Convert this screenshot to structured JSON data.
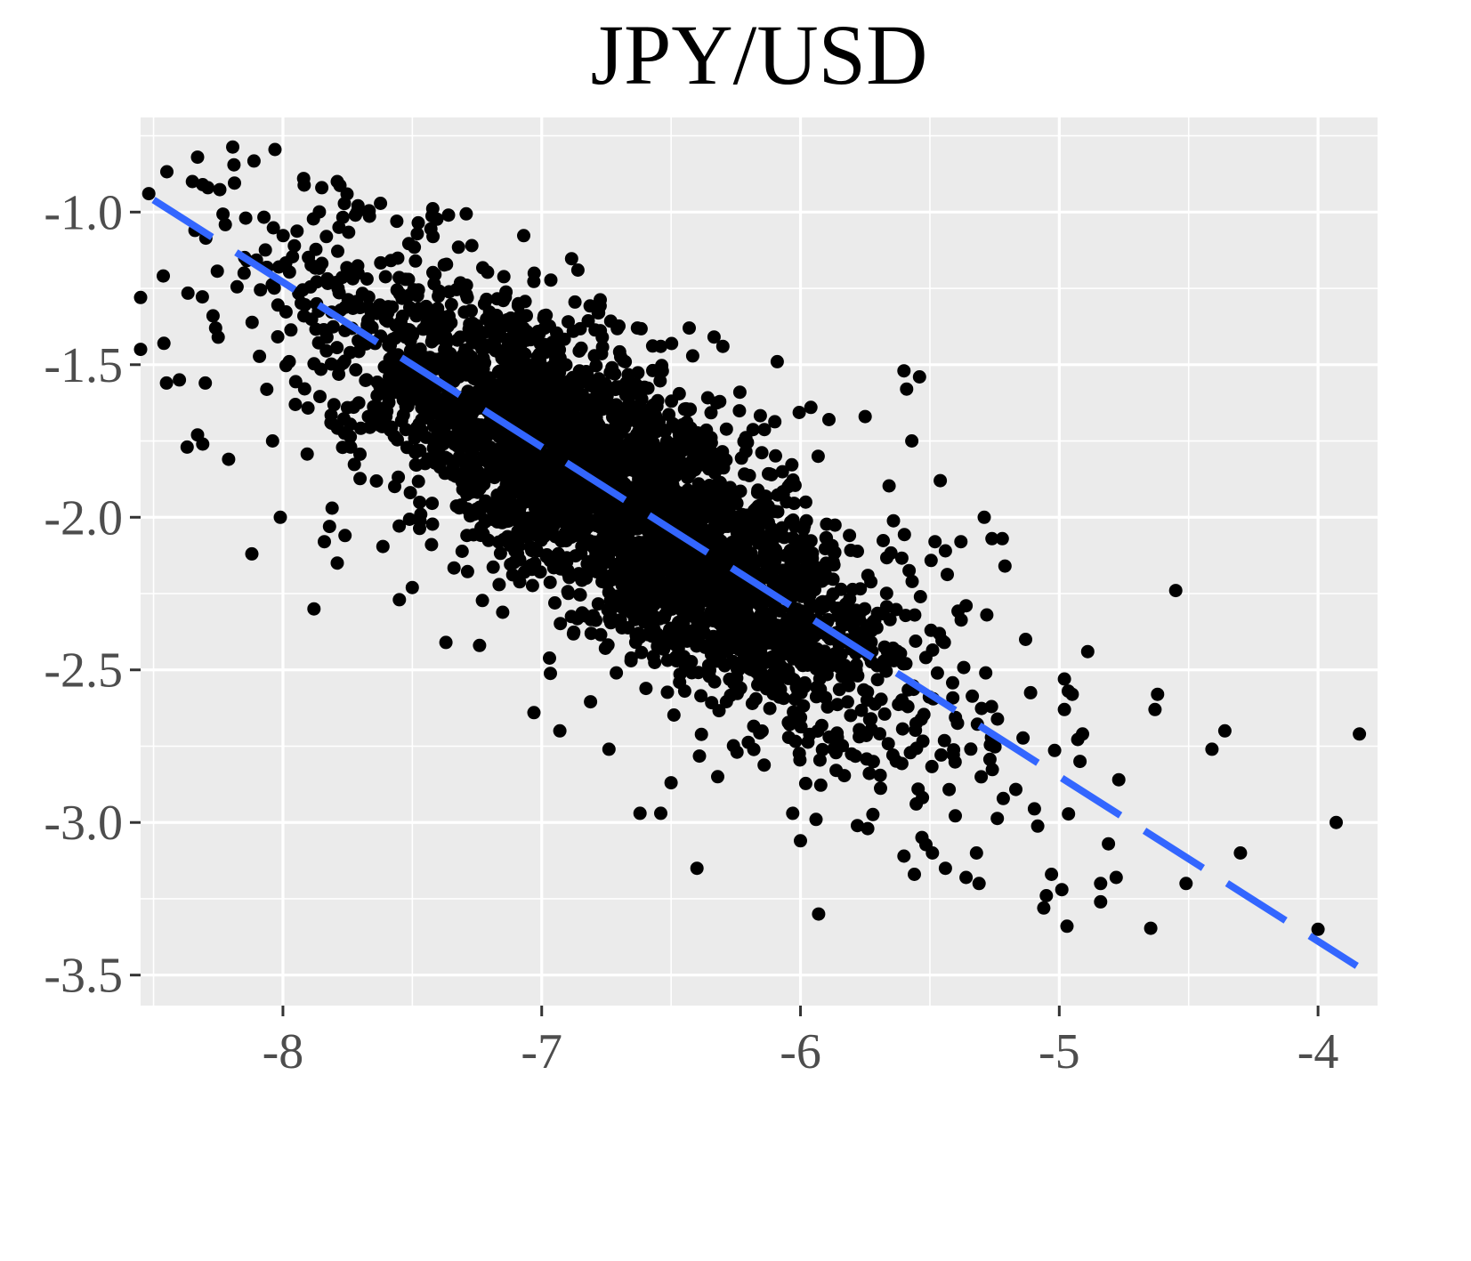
{
  "chart_data": {
    "type": "scatter",
    "title": "JPY/USD",
    "xlabel": "",
    "ylabel": "",
    "xlim": [
      -8.55,
      -3.77
    ],
    "ylim": [
      -3.6,
      -0.69
    ],
    "x_ticks": [
      "-8",
      "-7",
      "-6",
      "-5",
      "-4"
    ],
    "y_ticks": [
      "-1.0",
      "-1.5",
      "-2.0",
      "-2.5",
      "-3.0",
      "-3.5"
    ],
    "grid": true,
    "legend": "none",
    "colors": {
      "panel": "#ebebeb",
      "grid": "#ffffff",
      "points": "#000000",
      "fit_line": "#3366ff",
      "tick_text": "#4d4d4d"
    },
    "fit_line": {
      "style": "dashed",
      "x": [
        -8.5,
        -3.85
      ],
      "y": [
        -0.96,
        -3.47
      ]
    },
    "point_cloud": {
      "n": 3500,
      "x_center": -6.7,
      "x_sd": 0.55,
      "slope": -0.54,
      "intercept": -5.56,
      "resid_sd": 0.22
    },
    "points": [
      [
        -8.33,
        -0.82
      ],
      [
        -8.35,
        -0.9
      ],
      [
        -8.31,
        -0.91
      ],
      [
        -8.29,
        -0.92
      ],
      [
        -8.34,
        -1.06
      ],
      [
        -8.55,
        -1.28
      ],
      [
        -8.55,
        -1.45
      ],
      [
        -8.46,
        -1.43
      ],
      [
        -8.45,
        -1.56
      ],
      [
        -8.4,
        -1.55
      ],
      [
        -8.37,
        -1.77
      ],
      [
        -8.33,
        -1.73
      ],
      [
        -8.31,
        -1.76
      ],
      [
        -8.3,
        -1.56
      ],
      [
        -8.27,
        -1.34
      ],
      [
        -8.26,
        -1.38
      ],
      [
        -8.25,
        -1.41
      ],
      [
        -8.21,
        -1.81
      ],
      [
        -8.15,
        -1.2
      ],
      [
        -8.12,
        -2.12
      ],
      [
        -8.04,
        -1.75
      ],
      [
        -8.01,
        -2.0
      ],
      [
        -7.88,
        -2.3
      ],
      [
        -7.79,
        -2.15
      ],
      [
        -7.72,
        -1.01
      ],
      [
        -7.71,
        -1.2
      ],
      [
        -7.79,
        -0.9
      ],
      [
        -7.92,
        -0.89
      ],
      [
        -7.85,
        -0.92
      ],
      [
        -7.56,
        -1.03
      ],
      [
        -7.42,
        -1.08
      ],
      [
        -7.36,
        -1.01
      ],
      [
        -7.27,
        -1.11
      ],
      [
        -7.09,
        -1.3
      ],
      [
        -6.99,
        -1.34
      ],
      [
        -6.86,
        -1.19
      ],
      [
        -6.78,
        -1.33
      ],
      [
        -6.63,
        -1.38
      ],
      [
        -6.54,
        -1.44
      ],
      [
        -6.43,
        -1.38
      ],
      [
        -6.3,
        -1.44
      ],
      [
        -6.09,
        -1.49
      ],
      [
        -5.96,
        -1.64
      ],
      [
        -5.89,
        -1.68
      ],
      [
        -5.75,
        -1.67
      ],
      [
        -5.6,
        -1.52
      ],
      [
        -5.59,
        -1.58
      ],
      [
        -5.54,
        -1.54
      ],
      [
        -5.57,
        -1.75
      ],
      [
        -5.46,
        -1.88
      ],
      [
        -5.29,
        -2.0
      ],
      [
        -5.26,
        -2.07
      ],
      [
        -5.22,
        -2.07
      ],
      [
        -5.21,
        -2.16
      ],
      [
        -5.38,
        -2.08
      ],
      [
        -5.44,
        -2.11
      ],
      [
        -5.48,
        -2.08
      ],
      [
        -5.28,
        -2.32
      ],
      [
        -5.36,
        -2.29
      ],
      [
        -5.13,
        -2.4
      ],
      [
        -4.98,
        -2.53
      ],
      [
        -4.95,
        -2.58
      ],
      [
        -4.89,
        -2.44
      ],
      [
        -4.98,
        -2.63
      ],
      [
        -4.91,
        -2.71
      ],
      [
        -4.92,
        -2.8
      ],
      [
        -4.77,
        -2.86
      ],
      [
        -4.81,
        -3.07
      ],
      [
        -4.84,
        -3.2
      ],
      [
        -4.84,
        -3.26
      ],
      [
        -4.78,
        -3.18
      ],
      [
        -4.97,
        -3.34
      ],
      [
        -5.06,
        -3.28
      ],
      [
        -5.05,
        -3.24
      ],
      [
        -5.03,
        -3.17
      ],
      [
        -4.99,
        -3.22
      ],
      [
        -4.62,
        -2.58
      ],
      [
        -4.63,
        -2.63
      ],
      [
        -4.55,
        -2.24
      ],
      [
        -4.51,
        -3.2
      ],
      [
        -4.41,
        -2.76
      ],
      [
        -4.36,
        -2.7
      ],
      [
        -4.3,
        -3.1
      ],
      [
        -4.0,
        -3.35
      ],
      [
        -3.93,
        -3.0
      ],
      [
        -3.84,
        -2.71
      ],
      [
        -5.93,
        -3.3
      ],
      [
        -6.4,
        -3.15
      ],
      [
        -6.62,
        -2.97
      ],
      [
        -6.54,
        -2.97
      ],
      [
        -6.5,
        -2.87
      ],
      [
        -6.32,
        -2.85
      ],
      [
        -6.03,
        -2.97
      ],
      [
        -6.0,
        -3.06
      ],
      [
        -5.94,
        -2.99
      ],
      [
        -5.78,
        -3.01
      ],
      [
        -5.74,
        -3.02
      ],
      [
        -5.6,
        -3.11
      ],
      [
        -5.56,
        -3.17
      ],
      [
        -5.49,
        -3.1
      ],
      [
        -5.44,
        -3.15
      ],
      [
        -5.36,
        -3.18
      ],
      [
        -5.32,
        -3.1
      ],
      [
        -5.31,
        -3.2
      ],
      [
        -6.93,
        -2.7
      ],
      [
        -7.03,
        -2.64
      ],
      [
        -6.74,
        -2.76
      ],
      [
        -7.37,
        -2.41
      ],
      [
        -7.55,
        -2.27
      ],
      [
        -7.24,
        -2.42
      ],
      [
        -7.5,
        -2.23
      ],
      [
        -7.81,
        -1.97
      ],
      [
        -7.84,
        -2.08
      ],
      [
        -7.82,
        -2.03
      ],
      [
        -7.76,
        -2.06
      ]
    ]
  }
}
